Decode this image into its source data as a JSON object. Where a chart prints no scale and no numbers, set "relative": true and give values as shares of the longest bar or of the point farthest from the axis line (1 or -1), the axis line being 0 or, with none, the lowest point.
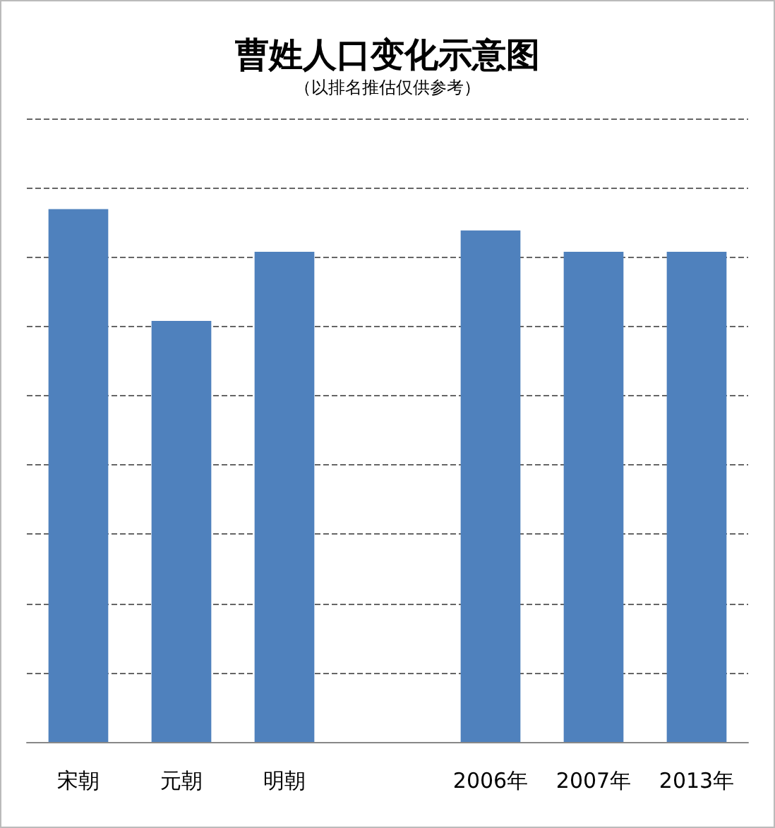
{
  "chart_data": {
    "type": "bar",
    "title": "曹姓人口变化示意图",
    "subtitle": "（以排名推估仅供参考）",
    "categories": [
      "宋朝",
      "元朝",
      "明朝",
      null,
      "2006年",
      "2007年",
      "2013年"
    ],
    "values": [
      1,
      0.79,
      0.92,
      null,
      0.96,
      0.92,
      0.92
    ],
    "color": "#4f81bd",
    "relative": true,
    "grid": "y"
  }
}
